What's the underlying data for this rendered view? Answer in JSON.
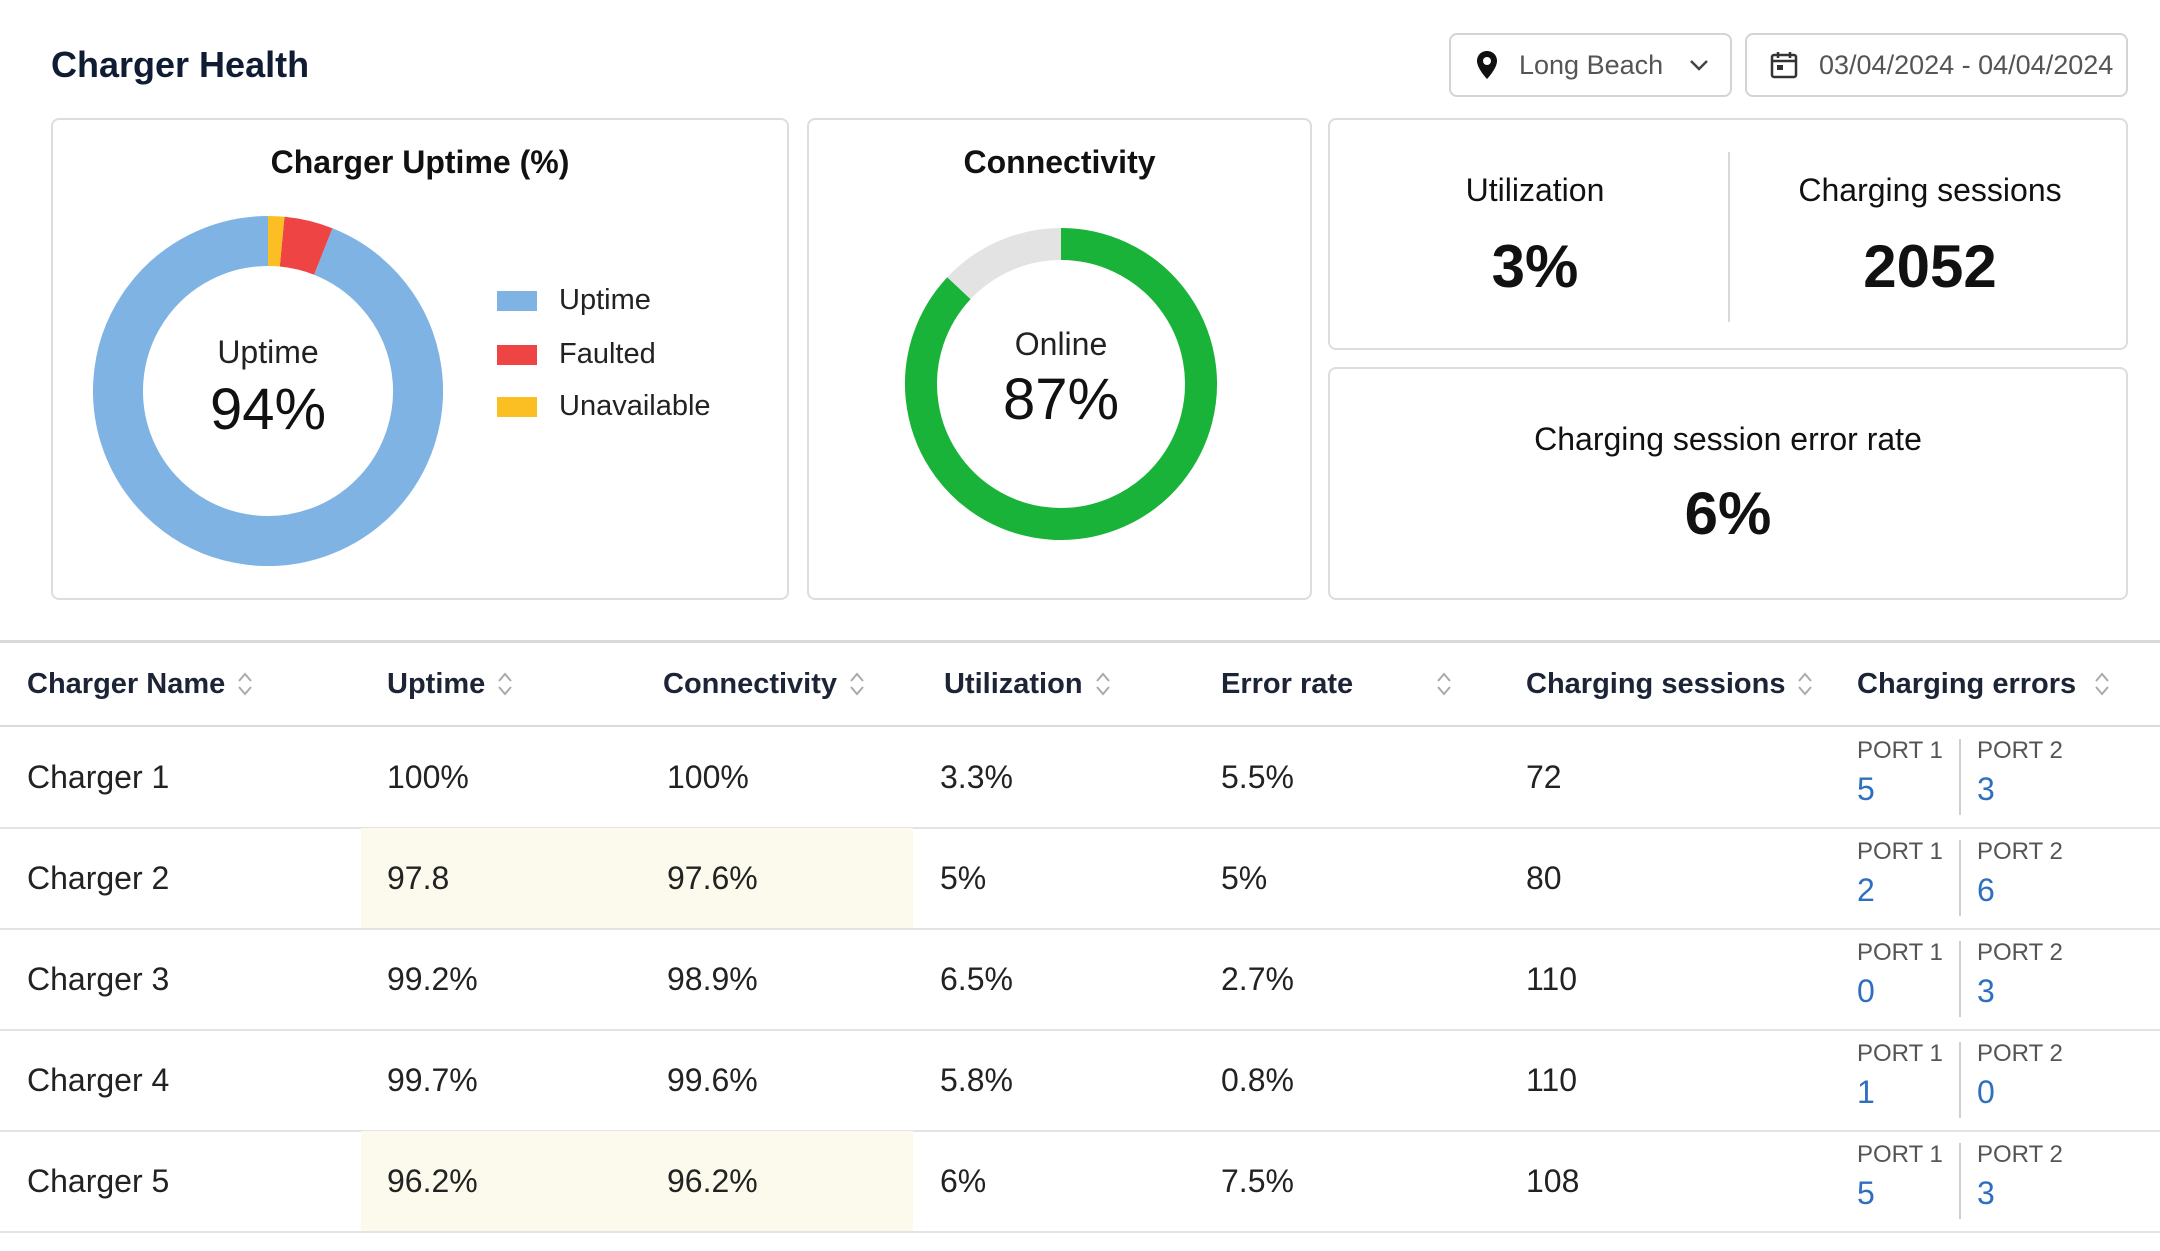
{
  "header": {
    "title": "Charger Health",
    "location": "Long Beach",
    "date_range": "03/04/2024 - 04/04/2024",
    "icons": [
      "location-pin-icon",
      "chevron-down-icon",
      "calendar-icon"
    ]
  },
  "uptime_card": {
    "title": "Charger Uptime (%)",
    "center_label": "Uptime",
    "center_value": "94%",
    "legend": [
      {
        "label": "Uptime",
        "color": "#7fb3e3"
      },
      {
        "label": "Faulted",
        "color": "#ef4444"
      },
      {
        "label": "Unavailable",
        "color": "#fbbf24"
      }
    ]
  },
  "connectivity_card": {
    "title": "Connectivity",
    "center_label": "Online",
    "center_value": "87%",
    "colors": {
      "online": "#19b33a",
      "offline": "#e3e3e3"
    }
  },
  "utilization_card": {
    "label": "Utilization",
    "value": "3%"
  },
  "sessions_card": {
    "label": "Charging sessions",
    "value": "2052"
  },
  "error_rate_card": {
    "label": "Charging session error rate",
    "value": "6%"
  },
  "chart_data": [
    {
      "type": "pie",
      "title": "Charger Uptime (%)",
      "categories": [
        "Uptime",
        "Faulted",
        "Unavailable"
      ],
      "values": [
        94,
        4.5,
        1.5
      ],
      "colors": [
        "#7fb3e3",
        "#ef4444",
        "#fbbf24"
      ]
    },
    {
      "type": "pie",
      "title": "Connectivity",
      "categories": [
        "Online",
        "Offline"
      ],
      "values": [
        87,
        13
      ],
      "colors": [
        "#19b33a",
        "#e3e3e3"
      ]
    }
  ],
  "table": {
    "columns": [
      "Charger Name",
      "Uptime",
      "Connectivity",
      "Utilization",
      "Error rate",
      "Charging sessions",
      "Charging errors"
    ],
    "port1_label": "PORT 1",
    "port2_label": "PORT 2",
    "highlight_color": "#fcfaec",
    "rows": [
      {
        "name": "Charger 1",
        "uptime": "100%",
        "connectivity": "100%",
        "utilization": "3.3%",
        "error_rate": "5.5%",
        "sessions": "72",
        "port1": "5",
        "port2": "3",
        "highlight": false
      },
      {
        "name": "Charger 2",
        "uptime": "97.8",
        "connectivity": "97.6%",
        "utilization": "5%",
        "error_rate": "5%",
        "sessions": "80",
        "port1": "2",
        "port2": "6",
        "highlight": true
      },
      {
        "name": "Charger 3",
        "uptime": "99.2%",
        "connectivity": "98.9%",
        "utilization": "6.5%",
        "error_rate": "2.7%",
        "sessions": "110",
        "port1": "0",
        "port2": "3",
        "highlight": false
      },
      {
        "name": "Charger 4",
        "uptime": "99.7%",
        "connectivity": "99.6%",
        "utilization": "5.8%",
        "error_rate": "0.8%",
        "sessions": "110",
        "port1": "1",
        "port2": "0",
        "highlight": false
      },
      {
        "name": "Charger 5",
        "uptime": "96.2%",
        "connectivity": "96.2%",
        "utilization": "6%",
        "error_rate": "7.5%",
        "sessions": "108",
        "port1": "5",
        "port2": "3",
        "highlight": true
      }
    ]
  }
}
